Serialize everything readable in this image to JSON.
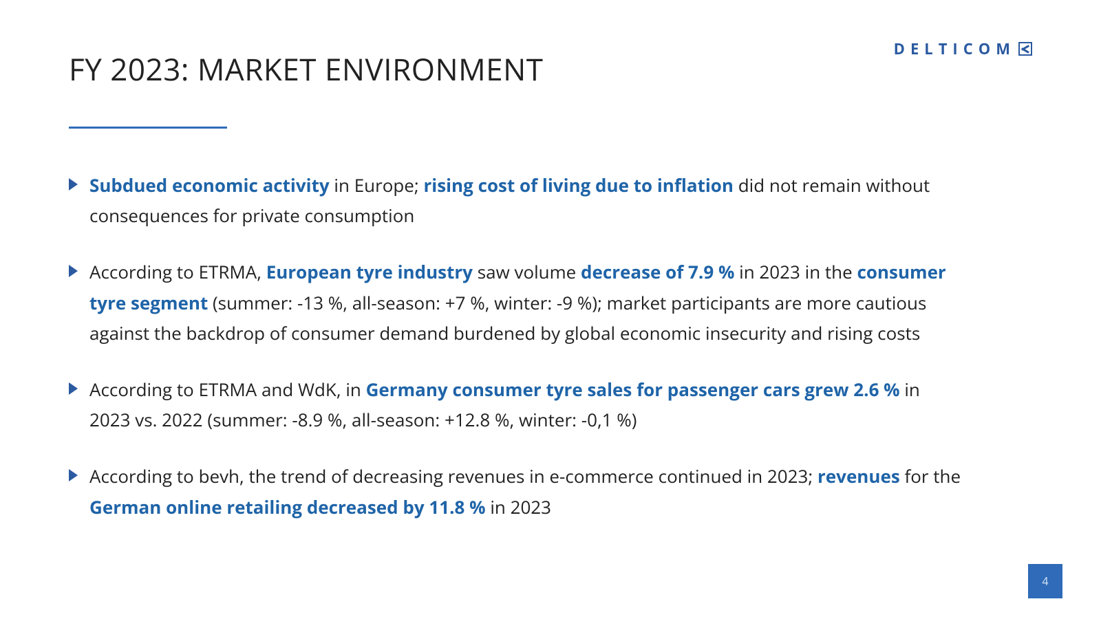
{
  "brand": {
    "name": "DELTICOM"
  },
  "slide": {
    "title": "FY 2023: MARKET ENVIRONMENT",
    "page_number": "4",
    "accent_color": "#2f6bb8",
    "underline_color": "#2f6bb8",
    "bullet_marker_color": "#2b5aa0",
    "highlight_color": "#1f64a8",
    "text_color": "#222222",
    "background_color": "#ffffff",
    "title_fontsize": 44,
    "body_fontsize": 26
  },
  "bullets": [
    {
      "segments": [
        {
          "t": "Subdued economic activity",
          "hl": true
        },
        {
          "t": " in Europe; ",
          "hl": false
        },
        {
          "t": "rising cost of living due to inflation",
          "hl": true
        },
        {
          "t": " did not remain without consequences for private consumption",
          "hl": false
        }
      ]
    },
    {
      "segments": [
        {
          "t": "According to ETRMA, ",
          "hl": false
        },
        {
          "t": "European tyre industry",
          "hl": true
        },
        {
          "t": " saw volume ",
          "hl": false
        },
        {
          "t": "decrease of 7.9 %",
          "hl": true
        },
        {
          "t": " in 2023 in the ",
          "hl": false
        },
        {
          "t": "consumer tyre segment",
          "hl": true
        },
        {
          "t": " (summer: -13 %, all-season: +7 %, winter: -9 %); market participants are more cautious against the backdrop of consumer demand burdened by global economic insecurity and rising costs",
          "hl": false
        }
      ]
    },
    {
      "segments": [
        {
          "t": "According to ETRMA and WdK, in ",
          "hl": false
        },
        {
          "t": "Germany consumer tyre sales for passenger cars grew 2.6 %",
          "hl": true
        },
        {
          "t": " in 2023 vs. 2022 (summer: -8.9 %, all-season: +12.8 %, winter: -0,1 %)",
          "hl": false
        }
      ]
    },
    {
      "segments": [
        {
          "t": "According to bevh, the trend of decreasing revenues in e-commerce continued in 2023; ",
          "hl": false
        },
        {
          "t": "revenues",
          "hl": true
        },
        {
          "t": " for the ",
          "hl": false
        },
        {
          "t": "German online retailing decreased by 11.8 %",
          "hl": true
        },
        {
          "t": " in 2023",
          "hl": false
        }
      ]
    }
  ]
}
